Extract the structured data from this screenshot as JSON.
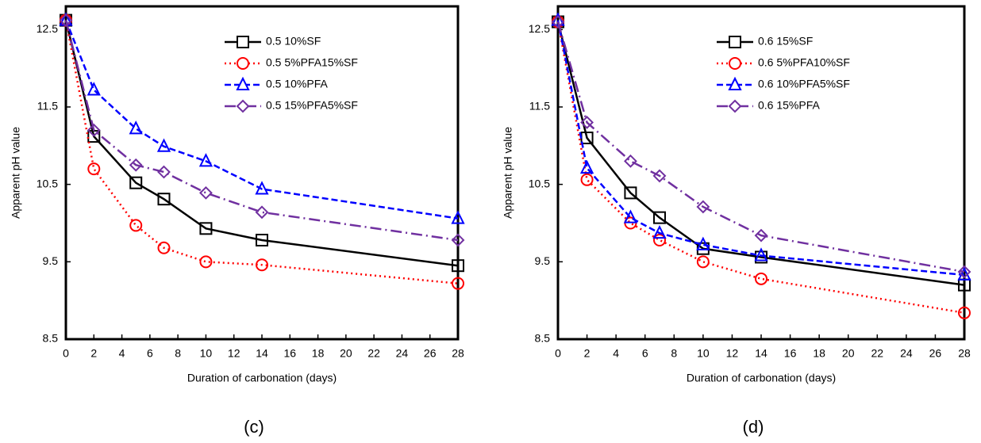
{
  "chart_data": [
    {
      "type": "line",
      "panel_label": "(c)",
      "x_label": "Duration of carbonation (days)",
      "y_label": "Apparent pH value",
      "x": [
        0,
        2,
        5,
        7,
        10,
        14,
        28
      ],
      "xlim": [
        0,
        28
      ],
      "xticks": [
        0,
        2,
        4,
        6,
        8,
        10,
        12,
        14,
        16,
        18,
        20,
        22,
        24,
        26,
        28
      ],
      "ylim": [
        8.5,
        12.8
      ],
      "yticks": [
        8.5,
        9.5,
        10.5,
        11.5,
        12.5
      ],
      "legend": "upper right",
      "series": [
        {
          "name": "0.5 10%SF",
          "color": "#000000",
          "marker": "square",
          "dash": "solid",
          "values": [
            12.62,
            11.12,
            10.52,
            10.31,
            9.93,
            9.78,
            9.45
          ]
        },
        {
          "name": "0.5 5%PFA15%SF",
          "color": "#ff0000",
          "marker": "circle",
          "dash": "dotted",
          "values": [
            12.62,
            10.7,
            9.97,
            9.68,
            9.5,
            9.46,
            9.22
          ]
        },
        {
          "name": "0.5 10%PFA",
          "color": "#0000ff",
          "marker": "triangle",
          "dash": "dashed",
          "values": [
            12.62,
            11.72,
            11.22,
            10.99,
            10.8,
            10.44,
            10.06
          ]
        },
        {
          "name": "0.5 15%PFA5%SF",
          "color": "#7030a0",
          "marker": "diamond",
          "dash": "dashdot",
          "values": [
            12.62,
            11.2,
            10.75,
            10.66,
            10.39,
            10.14,
            9.78
          ]
        }
      ]
    },
    {
      "type": "line",
      "panel_label": "(d)",
      "x_label": "Duration of carbonation (days)",
      "y_label": "Apparent pH value",
      "x": [
        0,
        2,
        5,
        7,
        10,
        14,
        28
      ],
      "xlim": [
        0,
        28
      ],
      "xticks": [
        0,
        2,
        4,
        6,
        8,
        10,
        12,
        14,
        16,
        18,
        20,
        22,
        24,
        26,
        28
      ],
      "ylim": [
        8.5,
        12.8
      ],
      "yticks": [
        8.5,
        9.5,
        10.5,
        11.5,
        12.5
      ],
      "legend": "upper right",
      "series": [
        {
          "name": "0.6 15%SF",
          "color": "#000000",
          "marker": "square",
          "dash": "solid",
          "values": [
            12.6,
            11.1,
            10.39,
            10.07,
            9.67,
            9.56,
            9.2
          ]
        },
        {
          "name": "0.6 5%PFA10%SF",
          "color": "#ff0000",
          "marker": "circle",
          "dash": "dotted",
          "values": [
            12.6,
            10.56,
            10.0,
            9.78,
            9.5,
            9.28,
            8.84
          ]
        },
        {
          "name": "0.6 10%PFA5%SF",
          "color": "#0000ff",
          "marker": "triangle",
          "dash": "dashed",
          "values": [
            12.62,
            10.71,
            10.07,
            9.87,
            9.72,
            9.58,
            9.33
          ]
        },
        {
          "name": "0.6 15%PFA",
          "color": "#7030a0",
          "marker": "diamond",
          "dash": "dashdot",
          "values": [
            12.6,
            11.3,
            10.8,
            10.61,
            10.21,
            9.84,
            9.37
          ]
        }
      ]
    }
  ]
}
